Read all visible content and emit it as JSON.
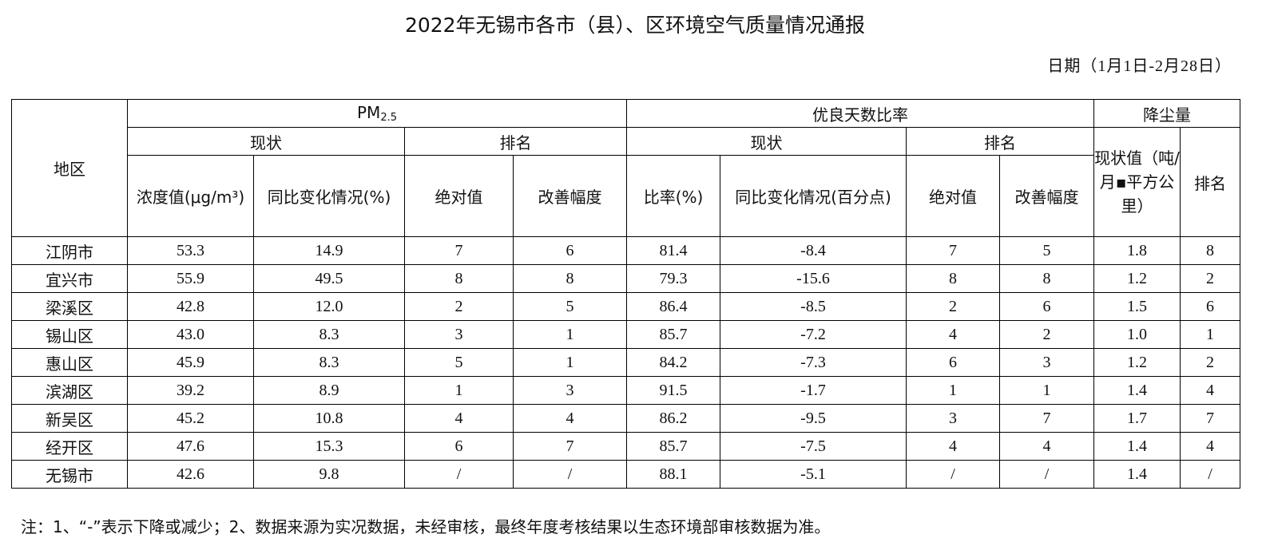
{
  "title": "2022年无锡市各市（县）、区环境空气质量情况通报",
  "date_range": "日期（1月1日-2月28日）",
  "headers": {
    "region": "地区",
    "pm25_main": "PM",
    "pm25_sub": "2.5",
    "good_days": "优良天数比率",
    "dust": "降尘量",
    "status": "现状",
    "rank": "排名",
    "concentration": "浓度值(μg/m³)",
    "yoy_pct": "同比变化情况(%)",
    "absolute": "绝对值",
    "improvement": "改善幅度",
    "ratio": "比率(%)",
    "yoy_points": "同比变化情况(百分点)",
    "absolute2": "绝对值",
    "improvement2": "改善幅度",
    "dust_value": "现状值（吨/月▪平方公里）",
    "dust_rank": "排名"
  },
  "rows": [
    {
      "region": "江阴市",
      "conc": "53.3",
      "yoy": "14.9",
      "abs": "7",
      "imp": "6",
      "ratio": "81.4",
      "yoy_pts": "-8.4",
      "abs2": "7",
      "imp2": "5",
      "dust": "1.8",
      "dust_rank": "8"
    },
    {
      "region": "宜兴市",
      "conc": "55.9",
      "yoy": "49.5",
      "abs": "8",
      "imp": "8",
      "ratio": "79.3",
      "yoy_pts": "-15.6",
      "abs2": "8",
      "imp2": "8",
      "dust": "1.2",
      "dust_rank": "2"
    },
    {
      "region": "梁溪区",
      "conc": "42.8",
      "yoy": "12.0",
      "abs": "2",
      "imp": "5",
      "ratio": "86.4",
      "yoy_pts": "-8.5",
      "abs2": "2",
      "imp2": "6",
      "dust": "1.5",
      "dust_rank": "6"
    },
    {
      "region": "锡山区",
      "conc": "43.0",
      "yoy": "8.3",
      "abs": "3",
      "imp": "1",
      "ratio": "85.7",
      "yoy_pts": "-7.2",
      "abs2": "4",
      "imp2": "2",
      "dust": "1.0",
      "dust_rank": "1"
    },
    {
      "region": "惠山区",
      "conc": "45.9",
      "yoy": "8.3",
      "abs": "5",
      "imp": "1",
      "ratio": "84.2",
      "yoy_pts": "-7.3",
      "abs2": "6",
      "imp2": "3",
      "dust": "1.2",
      "dust_rank": "2"
    },
    {
      "region": "滨湖区",
      "conc": "39.2",
      "yoy": "8.9",
      "abs": "1",
      "imp": "3",
      "ratio": "91.5",
      "yoy_pts": "-1.7",
      "abs2": "1",
      "imp2": "1",
      "dust": "1.4",
      "dust_rank": "4"
    },
    {
      "region": "新吴区",
      "conc": "45.2",
      "yoy": "10.8",
      "abs": "4",
      "imp": "4",
      "ratio": "86.2",
      "yoy_pts": "-9.5",
      "abs2": "3",
      "imp2": "7",
      "dust": "1.7",
      "dust_rank": "7"
    },
    {
      "region": "经开区",
      "conc": "47.6",
      "yoy": "15.3",
      "abs": "6",
      "imp": "7",
      "ratio": "85.7",
      "yoy_pts": "-7.5",
      "abs2": "4",
      "imp2": "4",
      "dust": "1.4",
      "dust_rank": "4"
    },
    {
      "region": "无锡市",
      "conc": "42.6",
      "yoy": "9.8",
      "abs": "/",
      "imp": "/",
      "ratio": "88.1",
      "yoy_pts": "-5.1",
      "abs2": "/",
      "imp2": "/",
      "dust": "1.4",
      "dust_rank": "/"
    }
  ],
  "note": "注：1、“-”表示下降或减少；2、数据来源为实况数据，未经审核，最终年度考核结果以生态环境部审核数据为准。"
}
